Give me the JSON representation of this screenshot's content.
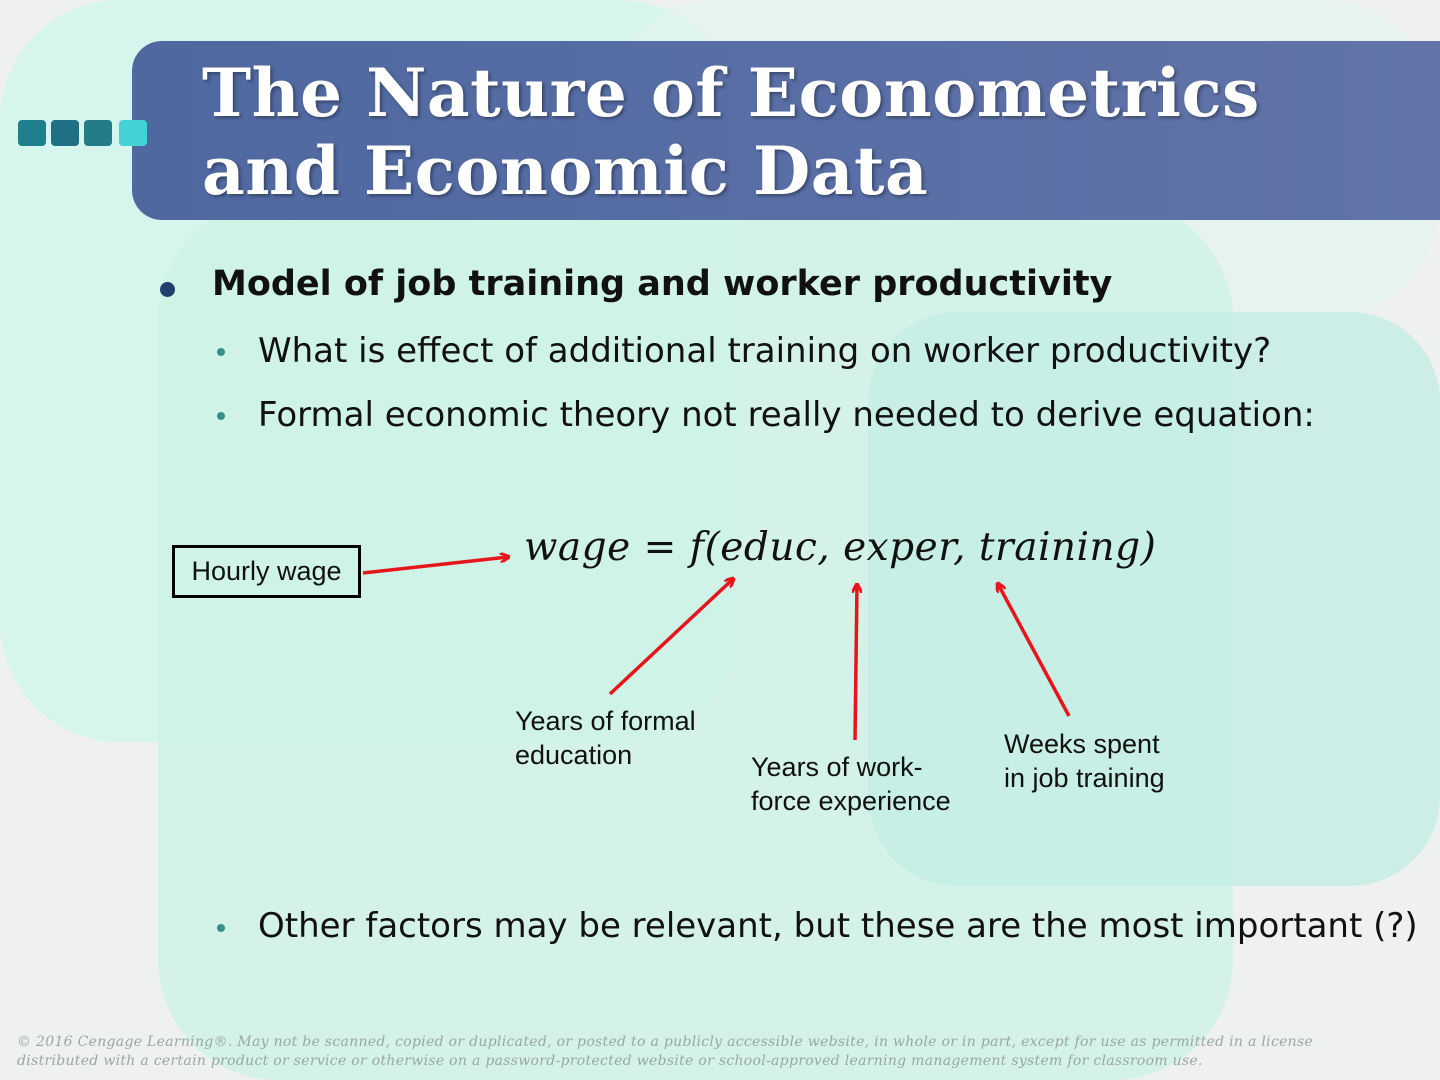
{
  "slide": {
    "title_line1": "The Nature of Econometrics",
    "title_line2": "and Economic Data",
    "main_bullet": "Model of job training and worker productivity",
    "sub_bullets": [
      "What is effect of additional training on worker productivity?",
      "Formal economic theory not really needed to derive equation:",
      "Other factors may be relevant, but these are the most important (?)"
    ]
  },
  "diagram": {
    "wage_box_label": "Hourly wage",
    "equation": "wage = f(educ, exper, training)",
    "label_educ_line1": "Years of formal",
    "label_educ_line2": "education",
    "label_exper_line1": "Years of work-",
    "label_exper_line2": "force experience",
    "label_training_line1": "Weeks spent",
    "label_training_line2": "in job training"
  },
  "footer": {
    "line1": "© 2016 Cengage Learning®. May not be scanned, copied or duplicated, or posted to a publicly accessible website, in whole or in part, except for use as permitted in a license",
    "line2": "distributed with a certain product or service or otherwise on a password-protected website or school-approved learning management system for classroom use."
  },
  "colors": {
    "title_bar": "#5a6fa6",
    "arrow": "#e8141c",
    "accent_squares": [
      "#1f7f8c",
      "#1f6f86",
      "#237c88",
      "#43d3d6"
    ]
  }
}
